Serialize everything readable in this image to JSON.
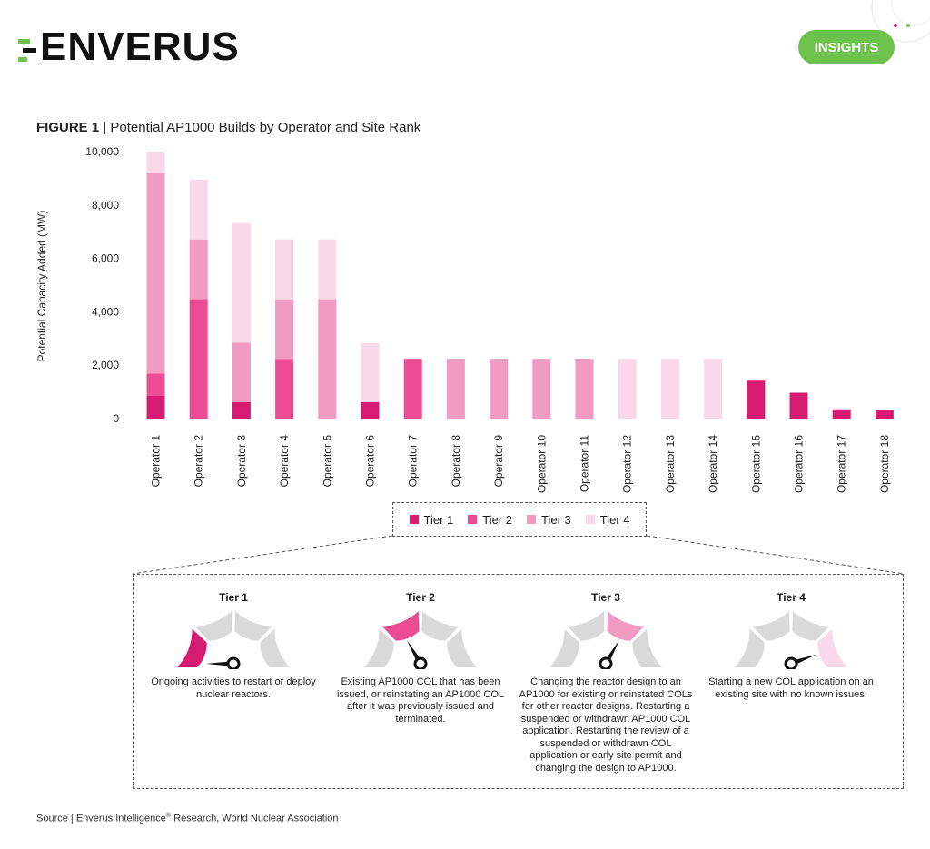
{
  "brand": {
    "name": "ENVERUS",
    "badge": "INSIGHTS",
    "green": "#6cc24a",
    "dark": "#111111"
  },
  "figure": {
    "label": "FIGURE 1",
    "separator": " | ",
    "title": "Potential AP1000 Builds by Operator and Site Rank"
  },
  "chart_data": {
    "type": "bar",
    "stacked": true,
    "ylabel": "Potential Capacity Added (MW)",
    "xlabel": "",
    "ylim": [
      0,
      10000
    ],
    "yticks": [
      0,
      2000,
      4000,
      6000,
      8000,
      10000
    ],
    "ytick_labels": [
      "0",
      "2,000",
      "4,000",
      "6,000",
      "8,000",
      "10,000"
    ],
    "grid": false,
    "legend_position": "bottom",
    "categories": [
      "Operator 1",
      "Operator 2",
      "Operator 3",
      "Operator 4",
      "Operator 5",
      "Operator 6",
      "Operator 7",
      "Operator 8",
      "Operator 9",
      "Operator 10",
      "Operator 11",
      "Operator 12",
      "Operator 13",
      "Operator 14",
      "Operator 15",
      "Operator 16",
      "Operator 17",
      "Operator 18"
    ],
    "series": [
      {
        "name": "Tier 1",
        "color": "#d81b72",
        "values": [
          850,
          0,
          620,
          0,
          0,
          620,
          0,
          0,
          0,
          0,
          0,
          0,
          0,
          0,
          1420,
          970,
          350,
          330
        ]
      },
      {
        "name": "Tier 2",
        "color": "#ec4c93",
        "values": [
          840,
          4470,
          0,
          2240,
          0,
          0,
          2240,
          0,
          0,
          0,
          0,
          0,
          0,
          0,
          0,
          0,
          0,
          0
        ]
      },
      {
        "name": "Tier 3",
        "color": "#f19ac2",
        "values": [
          7520,
          2240,
          2220,
          2230,
          4470,
          0,
          0,
          2240,
          2240,
          2240,
          2240,
          0,
          0,
          0,
          0,
          0,
          0,
          0
        ]
      },
      {
        "name": "Tier 4",
        "color": "#f9d9e7",
        "values": [
          790,
          2240,
          4480,
          2240,
          2240,
          2210,
          0,
          0,
          0,
          0,
          0,
          2240,
          2240,
          2240,
          0,
          0,
          0,
          0
        ]
      }
    ]
  },
  "tiers": [
    {
      "title": "Tier 1",
      "active_segment": 0,
      "color": "#d81b72",
      "desc": "Ongoing activities to restart or deploy nuclear reactors."
    },
    {
      "title": "Tier 2",
      "active_segment": 1,
      "color": "#ec4c93",
      "desc": "Existing AP1000 COL that has been issued, or reinstating an AP1000 COL after it was previously issued and terminated."
    },
    {
      "title": "Tier 3",
      "active_segment": 2,
      "color": "#f19ac2",
      "desc": "Changing the reactor design to an AP1000 for existing or reinstated COLs for other reactor designs. Restarting a suspended or withdrawn AP1000 COL application. Restarting the review of a suspended or withdrawn COL application or early site permit and changing the design to AP1000."
    },
    {
      "title": "Tier 4",
      "active_segment": 3,
      "color": "#f9d9e7",
      "desc": "Starting a new COL application on an existing site with no known issues."
    }
  ],
  "gauge_style": {
    "inactive": "#d9d9d9",
    "needle": "#111111"
  },
  "source": {
    "prefix": "Source | Enverus Intelligence",
    "reg": "®",
    "suffix": " Research, World Nuclear Association"
  }
}
